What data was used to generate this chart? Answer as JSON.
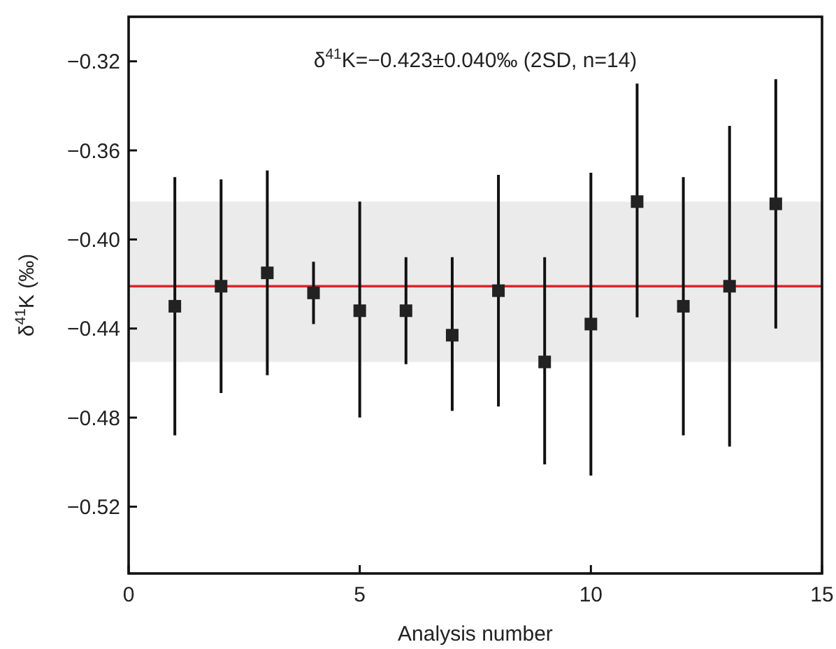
{
  "chart_data": {
    "type": "scatter",
    "xlabel": "Analysis number",
    "ylabel": "δ$^{41}$K (‰)",
    "annotations": [
      "δ$^{41}$K=−0.423±0.040‰ (2SD, n=14)"
    ],
    "x": [
      1,
      2,
      3,
      4,
      5,
      6,
      7,
      8,
      9,
      10,
      11,
      12,
      13,
      14
    ],
    "values": [
      -0.43,
      -0.421,
      -0.415,
      -0.424,
      -0.432,
      -0.432,
      -0.443,
      -0.423,
      -0.455,
      -0.438,
      -0.383,
      -0.43,
      -0.421,
      -0.384
    ],
    "errors": [
      [
        -0.488,
        -0.372
      ],
      [
        -0.469,
        -0.373
      ],
      [
        -0.461,
        -0.369
      ],
      [
        -0.438,
        -0.41
      ],
      [
        -0.48,
        -0.383
      ],
      [
        -0.456,
        -0.408
      ],
      [
        -0.477,
        -0.408
      ],
      [
        -0.475,
        -0.371
      ],
      [
        -0.501,
        -0.408
      ],
      [
        -0.506,
        -0.37
      ],
      [
        -0.435,
        -0.33
      ],
      [
        -0.488,
        -0.372
      ],
      [
        -0.493,
        -0.349
      ],
      [
        -0.44,
        -0.328
      ]
    ],
    "color": "#222222",
    "marker": "square",
    "ref_lines": [
      {
        "axis": "y",
        "value": -0.421,
        "color": "#e0242b"
      }
    ],
    "bands": [
      {
        "axis": "y",
        "from": -0.455,
        "to": -0.383,
        "color": "#ebebeb"
      }
    ],
    "xlim": [
      0,
      15
    ],
    "xticks": [
      0,
      5,
      10,
      15
    ],
    "ylim": [
      -0.55,
      -0.3
    ],
    "yticks": [
      {
        "value": -0.52,
        "label": "−0.52"
      },
      {
        "value": -0.48,
        "label": "−0.48"
      },
      {
        "value": -0.44,
        "label": "−0.44"
      },
      {
        "value": -0.4,
        "label": "−0.40"
      },
      {
        "value": -0.36,
        "label": "−0.36"
      },
      {
        "value": -0.32,
        "label": "−0.32"
      }
    ],
    "grid": false
  }
}
